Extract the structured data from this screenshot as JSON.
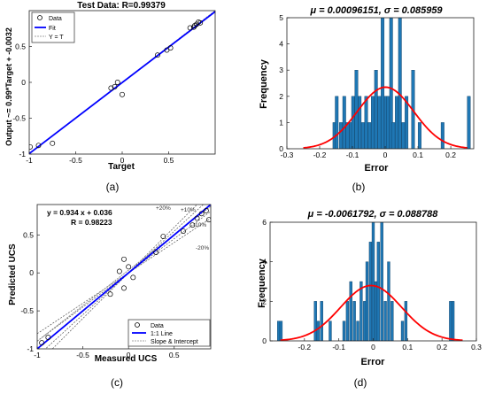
{
  "chart_data": [
    {
      "type": "scatter",
      "panel_label": "(a)",
      "title": "Test Data: R=0.99379",
      "xlabel": "Target",
      "ylabel": "Output ~= 0.99*Target + -0.0032",
      "xlim": [
        -1,
        1
      ],
      "ylim": [
        -1,
        1
      ],
      "xticks": [
        "-1",
        "-0.5",
        "0",
        "0.5"
      ],
      "yticks": [
        "-1",
        "-0.5",
        "0",
        "0.5"
      ],
      "grid": false,
      "legend": {
        "position": "top-left",
        "entries": [
          "Data",
          "Fit",
          "Y = T"
        ]
      },
      "colors": {
        "fit": "#0000ff",
        "identity": "#888888",
        "marker": "#000000"
      },
      "fit": {
        "slope": 0.99,
        "intercept": -0.0032
      },
      "points": {
        "x": [
          -0.99,
          -0.9,
          -0.75,
          -0.12,
          -0.08,
          -0.05,
          0.0,
          0.38,
          0.48,
          0.52,
          0.73,
          0.77,
          0.78,
          0.8,
          0.82,
          0.84
        ],
        "y": [
          -0.9,
          -0.88,
          -0.85,
          -0.08,
          -0.06,
          0.0,
          -0.17,
          0.38,
          0.45,
          0.48,
          0.76,
          0.77,
          0.79,
          0.81,
          0.84,
          0.83
        ]
      }
    },
    {
      "type": "bar",
      "panel_label": "(b)",
      "title": "μ = 0.00096151, σ = 0.085959",
      "xlabel": "Error",
      "ylabel": "Frequency",
      "xlim": [
        -0.3,
        0.27
      ],
      "ylim": [
        0,
        5
      ],
      "xticks": [
        "-0.3",
        "-0.2",
        "-0.1",
        "0",
        "0.1",
        "0.2"
      ],
      "yticks": [
        "0",
        "1",
        "2",
        "3",
        "4",
        "5"
      ],
      "grid": false,
      "colors": {
        "bar": "#1f77b4",
        "curve": "#ff0000"
      },
      "normal_curve": {
        "mu": 0.00096151,
        "sigma": 0.085959,
        "peak": 2.35,
        "range": [
          -0.25,
          0.25
        ]
      },
      "histogram": {
        "centers": [
          -0.155,
          -0.148,
          -0.135,
          -0.125,
          -0.115,
          -0.105,
          -0.098,
          -0.088,
          -0.078,
          -0.068,
          -0.058,
          -0.048,
          -0.038,
          -0.028,
          -0.018,
          -0.008,
          0.002,
          0.008,
          0.018,
          0.025,
          0.035,
          0.045,
          0.055,
          0.065,
          0.085,
          0.105,
          0.175,
          0.255
        ],
        "counts": [
          1,
          2,
          1,
          2,
          1,
          1,
          2,
          3,
          2,
          1,
          2,
          1,
          2,
          3,
          2,
          5,
          2,
          2,
          5,
          1,
          2,
          5,
          1,
          2,
          3,
          1,
          1,
          2
        ],
        "bin_width": 0.0095
      }
    },
    {
      "type": "scatter",
      "panel_label": "(c)",
      "title": "",
      "xlabel": "Measured UCS",
      "ylabel": "Predicted UCS",
      "xlim": [
        -1,
        0.9
      ],
      "ylim": [
        -1,
        0.9
      ],
      "xticks": [
        "-1",
        "-0.5",
        "0",
        "0.5"
      ],
      "yticks": [
        "-1",
        "-0.5",
        "0",
        "0.5"
      ],
      "grid": false,
      "annotations": [
        "y = 0.934 x + 0.036",
        "R = 0.98223"
      ],
      "band_labels": [
        "+20%",
        "+10%",
        "-10%",
        "-20%"
      ],
      "legend": {
        "position": "bottom-right",
        "entries": [
          "Data",
          "1:1 Line",
          "Slope & Intercept"
        ]
      },
      "colors": {
        "identity": "#0000ff",
        "fit": "#888888",
        "bands": "#555555",
        "marker": "#000000"
      },
      "fit": {
        "slope": 0.934,
        "intercept": 0.036
      },
      "points": {
        "x": [
          -0.95,
          -0.88,
          -0.2,
          -0.1,
          -0.05,
          -0.05,
          0.0,
          0.05,
          0.3,
          0.38,
          0.6,
          0.7,
          0.75,
          0.8,
          0.85,
          0.88
        ],
        "y": [
          -0.92,
          -0.85,
          -0.28,
          0.02,
          0.18,
          -0.2,
          0.08,
          -0.06,
          0.27,
          0.48,
          0.55,
          0.63,
          0.72,
          0.78,
          0.82,
          0.7
        ]
      }
    },
    {
      "type": "bar",
      "panel_label": "(d)",
      "title": "μ = -0.0061792, σ = 0.088788",
      "xlabel": "Error",
      "ylabel": "Frequency",
      "xlim": [
        -0.3,
        0.3
      ],
      "ylim": [
        0,
        6
      ],
      "xticks": [
        "-0.2",
        "-0.1",
        "0",
        "0.1",
        "0.2",
        "0.3"
      ],
      "yticks": [
        "0",
        "2",
        "4",
        "6"
      ],
      "grid": false,
      "colors": {
        "bar": "#1f77b4",
        "curve": "#ff0000"
      },
      "normal_curve": {
        "mu": -0.0061792,
        "sigma": 0.088788,
        "peak": 2.8,
        "range": [
          -0.27,
          0.26
        ]
      },
      "histogram": {
        "centers": [
          -0.275,
          -0.268,
          -0.168,
          -0.16,
          -0.15,
          -0.125,
          -0.085,
          -0.075,
          -0.065,
          -0.055,
          -0.045,
          -0.035,
          -0.025,
          -0.018,
          -0.008,
          0.0,
          0.008,
          0.015,
          0.025,
          0.035,
          0.045,
          0.055,
          0.085,
          0.095,
          0.225,
          0.232
        ],
        "counts": [
          1,
          1,
          2,
          1,
          2,
          1,
          1,
          2,
          3,
          2,
          1,
          3,
          2,
          4,
          5,
          6,
          3,
          5,
          6,
          2,
          4,
          2,
          1,
          2,
          2,
          2
        ],
        "bin_width": 0.0075
      }
    }
  ]
}
